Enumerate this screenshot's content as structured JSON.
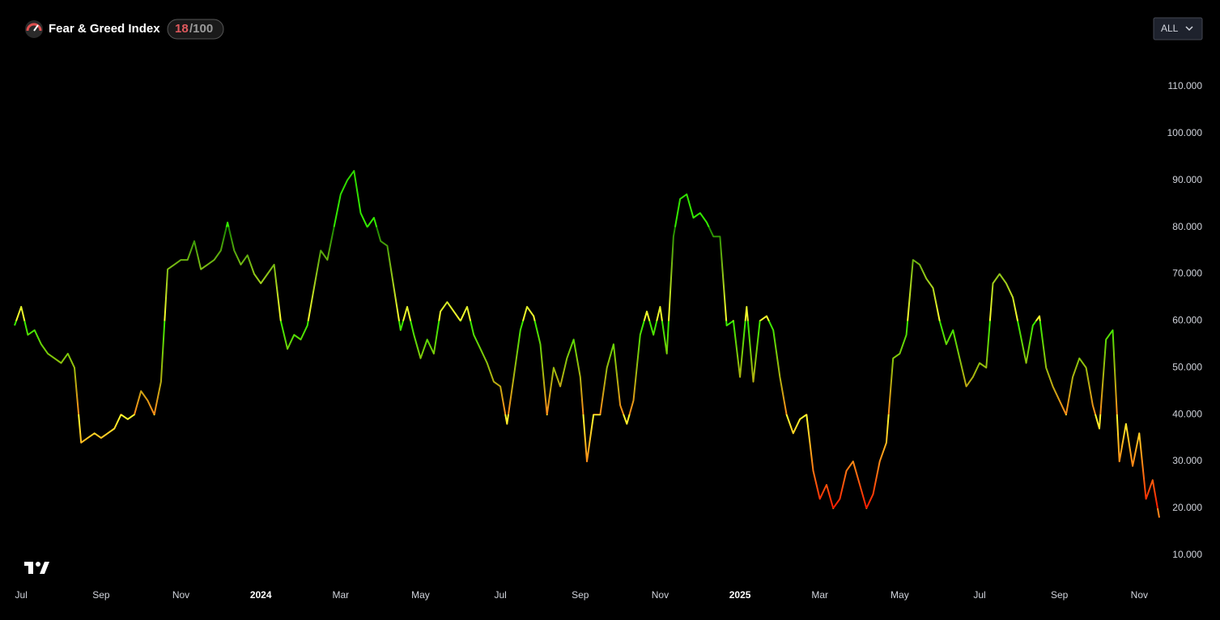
{
  "header": {
    "title": "Fear & Greed Index",
    "score": 18,
    "score_total": "/100",
    "range_button": "ALL"
  },
  "chart_data": {
    "type": "line",
    "categories": [
      null,
      "Jul",
      null,
      null,
      null,
      null,
      null,
      null,
      null,
      null,
      null,
      null,
      null,
      "Sep",
      null,
      null,
      null,
      null,
      null,
      null,
      null,
      null,
      null,
      null,
      null,
      "Nov",
      null,
      null,
      null,
      null,
      null,
      null,
      null,
      null,
      null,
      null,
      null,
      "2024",
      null,
      null,
      null,
      null,
      null,
      null,
      null,
      null,
      null,
      null,
      null,
      "Mar",
      null,
      null,
      null,
      null,
      null,
      null,
      null,
      null,
      null,
      null,
      null,
      "May",
      null,
      null,
      null,
      null,
      null,
      null,
      null,
      null,
      null,
      null,
      null,
      "Jul",
      null,
      null,
      null,
      null,
      null,
      null,
      null,
      null,
      null,
      null,
      null,
      "Sep",
      null,
      null,
      null,
      null,
      null,
      null,
      null,
      null,
      null,
      null,
      null,
      "Nov",
      null,
      null,
      null,
      null,
      null,
      null,
      null,
      null,
      null,
      null,
      null,
      "2025",
      null,
      null,
      null,
      null,
      null,
      null,
      null,
      null,
      null,
      null,
      null,
      "Mar",
      null,
      null,
      null,
      null,
      null,
      null,
      null,
      null,
      null,
      null,
      null,
      "May",
      null,
      null,
      null,
      null,
      null,
      null,
      null,
      null,
      null,
      null,
      null,
      "Jul",
      null,
      null,
      null,
      null,
      null,
      null,
      null,
      null,
      null,
      null,
      null,
      "Sep",
      null,
      null,
      null,
      null,
      null,
      null,
      null,
      null,
      null,
      null,
      null,
      "Nov",
      null,
      null,
      null
    ],
    "values": [
      59,
      63,
      57,
      58,
      55,
      53,
      52,
      51,
      53,
      50,
      34,
      35,
      36,
      35,
      36,
      37,
      40,
      39,
      40,
      45,
      43,
      40,
      47,
      71,
      72,
      73,
      73,
      77,
      71,
      72,
      73,
      75,
      81,
      75,
      72,
      74,
      70,
      68,
      70,
      72,
      60,
      54,
      57,
      56,
      59,
      67,
      75,
      73,
      80,
      87,
      90,
      92,
      83,
      80,
      82,
      77,
      76,
      67,
      58,
      63,
      57,
      52,
      56,
      53,
      62,
      64,
      62,
      60,
      63,
      57,
      54,
      51,
      47,
      46,
      38,
      48,
      58,
      63,
      61,
      55,
      40,
      50,
      46,
      52,
      56,
      48,
      30,
      40,
      40,
      50,
      55,
      42,
      38,
      43,
      57,
      62,
      57,
      63,
      53,
      78,
      86,
      87,
      82,
      83,
      81,
      78,
      78,
      59,
      60,
      48,
      63,
      47,
      60,
      61,
      58,
      48,
      40,
      36,
      39,
      40,
      28,
      22,
      25,
      20,
      22,
      28,
      30,
      25,
      20,
      23,
      30,
      34,
      52,
      53,
      57,
      73,
      72,
      69,
      67,
      60,
      55,
      58,
      52,
      46,
      48,
      51,
      50,
      68,
      70,
      68,
      65,
      58,
      51,
      59,
      61,
      50,
      46,
      43,
      40,
      48,
      52,
      50,
      42,
      37,
      56,
      58,
      30,
      38,
      29,
      36,
      22,
      26,
      18
    ],
    "color_steps": [
      {
        "from": 0,
        "color": "#ff1a00"
      },
      {
        "from": 20,
        "color": "#ff8c1a"
      },
      {
        "from": 40,
        "color": "#ffff2e"
      },
      {
        "from": 60,
        "color": "#33ee00"
      },
      {
        "from": 80,
        "color": "#1a8a00"
      }
    ],
    "ylim": [
      4.1,
      118.1
    ],
    "yticks": [
      {
        "value": 10,
        "label": "10.000"
      },
      {
        "value": 20,
        "label": "20.000"
      },
      {
        "value": 30,
        "label": "30.000"
      },
      {
        "value": 40,
        "label": "40.000"
      },
      {
        "value": 50,
        "label": "50.000"
      },
      {
        "value": 60,
        "label": "60.000"
      },
      {
        "value": 70,
        "label": "70.000"
      },
      {
        "value": 80,
        "label": "80.000"
      },
      {
        "value": 90,
        "label": "90.000"
      },
      {
        "value": 100,
        "label": "100.000"
      },
      {
        "value": 110,
        "label": "110.000"
      }
    ],
    "grid": false
  }
}
